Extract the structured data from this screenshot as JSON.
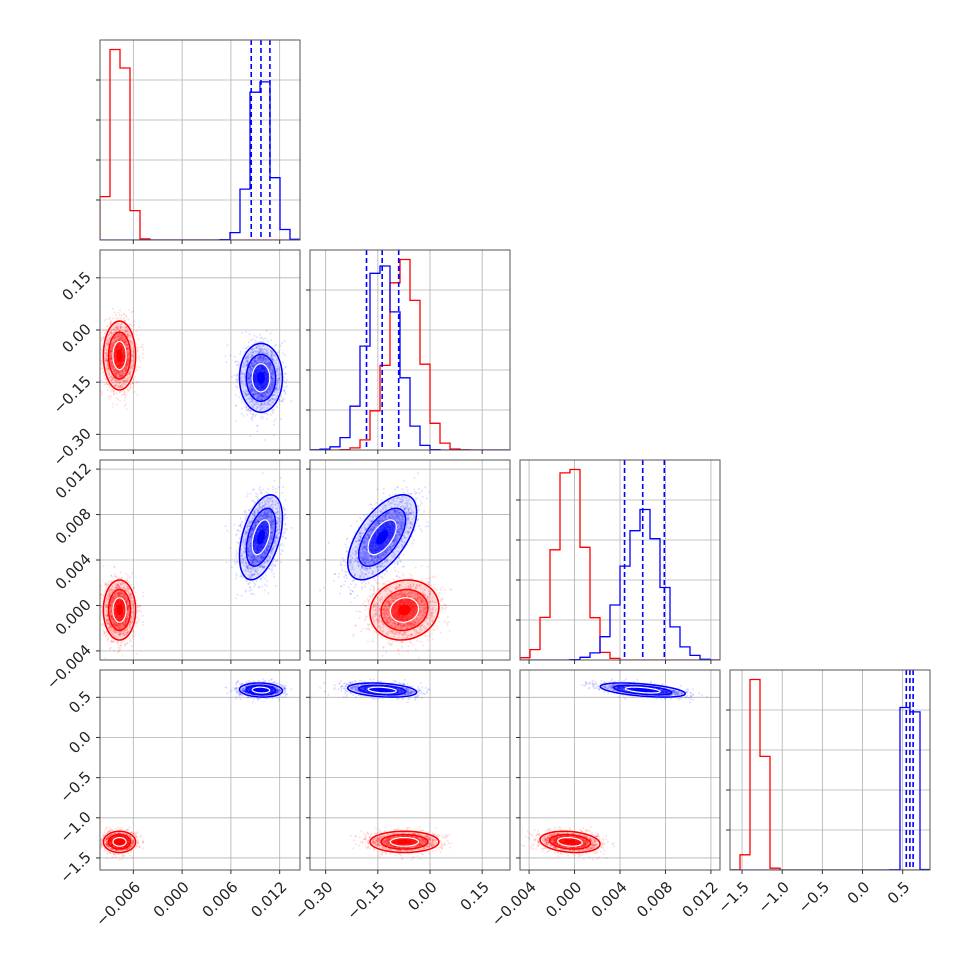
{
  "chart_data": {
    "type": "corner",
    "title": "",
    "parameters": [
      "",
      "",
      "",
      ""
    ],
    "colors": {
      "series_a": "#ff0000",
      "series_b": "#0000ff",
      "grid": "#b0b0b0",
      "frame": "#555555"
    },
    "series": [
      {
        "color": "#ff0000",
        "mean": [
          -0.0077,
          -0.0735,
          -0.0004,
          -1.3
        ],
        "std": [
          0.0009,
          0.045,
          0.0012,
          0.06
        ],
        "corr": {
          "1,0": 0.0,
          "2,0": 0.0,
          "2,1": 0.1,
          "3,0": 0.0,
          "3,1": 0.0,
          "3,2": -0.2
        },
        "quantile_lines": []
      },
      {
        "color": "#0000ff",
        "mean": [
          0.0097,
          -0.1375,
          0.006,
          0.59
        ],
        "std": [
          0.0012,
          0.045,
          0.0017,
          0.04
        ],
        "corr": {
          "1,0": 0.0,
          "2,0": 0.45,
          "2,1": 0.6,
          "3,0": -0.1,
          "3,1": -0.3,
          "3,2": -0.5
        },
        "quantile_lines": [
          [
            0.0085,
            0.0097,
            0.0108
          ],
          [
            -0.1825,
            -0.1375,
            -0.09
          ],
          [
            0.0044,
            0.006,
            0.0079
          ],
          [
            0.545,
            0.59,
            0.63
          ]
        ]
      }
    ],
    "ranges": [
      [
        -0.0101,
        0.0145
      ],
      [
        -0.345,
        0.23
      ],
      [
        -0.0048,
        0.0128
      ],
      [
        -1.65,
        0.84
      ]
    ],
    "ticks": [
      {
        "values": [
          -0.006,
          0.0,
          0.006,
          0.012
        ],
        "labels": [
          "−0.006",
          "0.000",
          "0.006",
          "0.012"
        ]
      },
      {
        "values": [
          -0.3,
          -0.15,
          0.0,
          0.15
        ],
        "labels": [
          "−0.30",
          "−0.15",
          "0.00",
          "0.15"
        ]
      },
      {
        "values": [
          -0.004,
          0.0,
          0.004,
          0.008,
          0.012
        ],
        "labels": [
          "−0.004",
          "0.000",
          "0.004",
          "0.008",
          "0.012"
        ]
      },
      {
        "values": [
          -1.5,
          -1.0,
          -0.5,
          0.0,
          0.5
        ],
        "labels": [
          "−1.5",
          "−1.0",
          "−0.5",
          "0.0",
          "0.5"
        ]
      }
    ],
    "grid": true,
    "legend": "none"
  }
}
